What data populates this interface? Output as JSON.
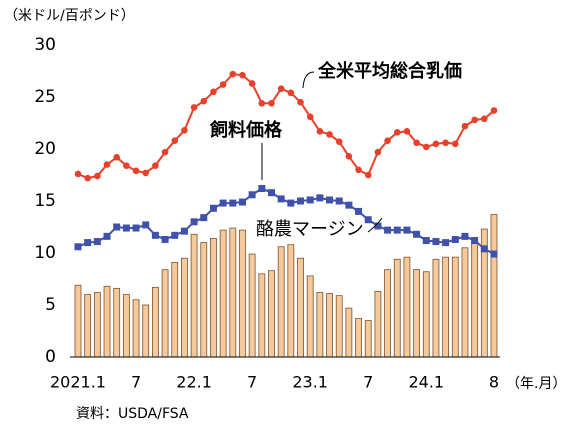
{
  "chart_data": {
    "type": "bar",
    "y_label": "（米ドル/百ポンド）",
    "x_label": "（年.月）",
    "source": "資料：USDA/FSA",
    "categories": [
      "2021.1",
      null,
      null,
      null,
      null,
      null,
      "7",
      null,
      null,
      null,
      null,
      null,
      "22.1",
      null,
      null,
      null,
      null,
      null,
      "7",
      null,
      null,
      null,
      null,
      null,
      "23.1",
      null,
      null,
      null,
      null,
      null,
      "7",
      null,
      null,
      null,
      null,
      null,
      "24.1",
      null,
      null,
      null,
      null,
      null,
      null,
      "8"
    ],
    "ylim": [
      0,
      30
    ],
    "yticks": [
      0,
      5,
      10,
      15,
      20,
      25,
      30
    ],
    "series": [
      {
        "name": "酪農マージン",
        "type": "bar",
        "color": "#f5c99a",
        "values": [
          6.9,
          6.0,
          6.2,
          6.8,
          6.6,
          6.0,
          5.5,
          5.0,
          6.7,
          8.4,
          9.1,
          9.5,
          11.8,
          11.0,
          11.4,
          12.2,
          12.4,
          12.2,
          9.9,
          8.0,
          8.3,
          10.6,
          10.8,
          9.5,
          7.8,
          6.2,
          6.1,
          5.9,
          4.7,
          3.7,
          3.5,
          6.3,
          8.4,
          9.4,
          9.6,
          8.4,
          8.2,
          9.4,
          9.6,
          9.6,
          10.5,
          11.2,
          12.3,
          13.7
        ]
      },
      {
        "name": "飼料価格",
        "type": "line",
        "marker": "square",
        "color": "#3f51a8",
        "values": [
          10.6,
          11.0,
          11.1,
          11.6,
          12.5,
          12.4,
          12.4,
          12.7,
          11.7,
          11.3,
          11.7,
          12.1,
          13.0,
          13.4,
          14.3,
          14.8,
          14.8,
          14.9,
          15.6,
          16.2,
          15.8,
          15.2,
          14.8,
          15.0,
          15.1,
          15.3,
          15.1,
          15.0,
          14.6,
          14.0,
          13.2,
          12.6,
          12.2,
          12.2,
          12.2,
          11.8,
          11.2,
          11.1,
          11.0,
          11.3,
          11.6,
          11.2,
          10.4,
          9.9
        ]
      },
      {
        "name": "全米平均総合乳価",
        "type": "line",
        "marker": "circle",
        "color": "#e8402a",
        "values": [
          17.6,
          17.2,
          17.4,
          18.5,
          19.2,
          18.4,
          17.9,
          17.7,
          18.4,
          19.7,
          20.8,
          21.8,
          24.0,
          24.6,
          25.5,
          26.2,
          27.2,
          27.1,
          26.3,
          24.4,
          24.4,
          25.8,
          25.4,
          24.5,
          23.1,
          21.7,
          21.4,
          20.7,
          19.3,
          18.0,
          17.5,
          19.7,
          20.8,
          21.6,
          21.7,
          20.6,
          20.2,
          20.5,
          20.6,
          20.5,
          22.2,
          22.8,
          22.9,
          23.7
        ]
      }
    ]
  }
}
